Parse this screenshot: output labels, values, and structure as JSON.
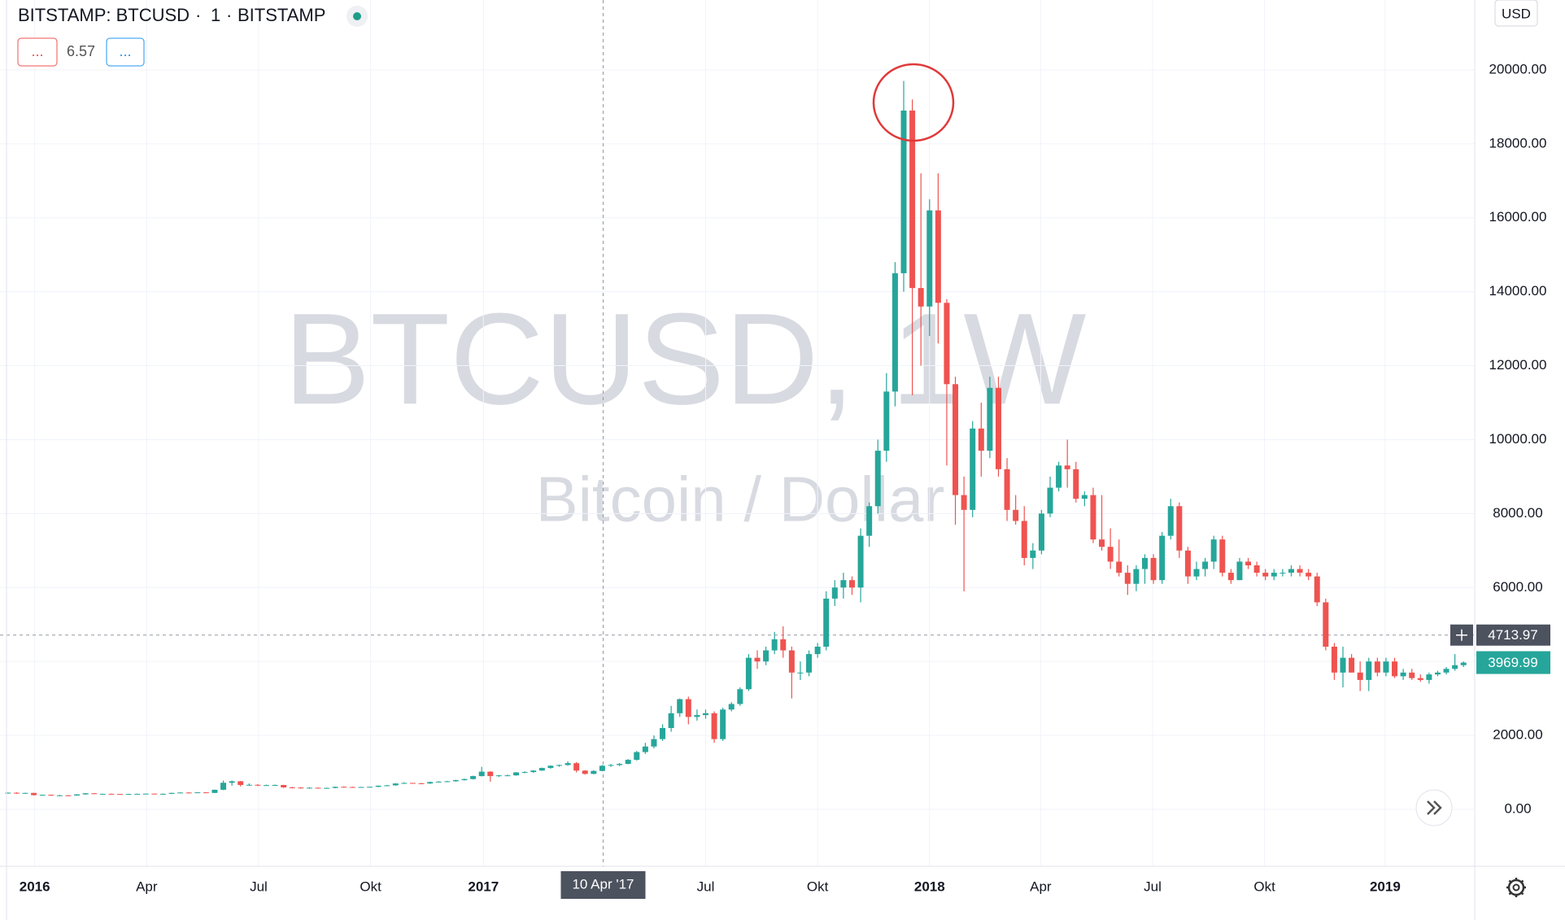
{
  "chart_data": {
    "type": "candlestick",
    "title": "BITSTAMP: BTCUSD",
    "interval": "1",
    "exchange": "BITSTAMP",
    "indicator_buttons": [
      "...",
      "..."
    ],
    "indicator_value": 6.57,
    "watermark": "BTCUSD, 1W",
    "watermark_subtitle": "Bitcoin / Dollar",
    "currency": "USD",
    "up_color": "#26a69a",
    "down_color": "#ef5350",
    "grid": true,
    "xlim": [
      -0.93,
      170.3
    ],
    "ylim": [
      -1540,
      21890
    ],
    "xticks": [
      {
        "value": 3.1,
        "label": "2016"
      },
      {
        "value": 16.1,
        "label": "Apr"
      },
      {
        "value": 29.1,
        "label": "Jul"
      },
      {
        "value": 42.1,
        "label": "Okt"
      },
      {
        "value": 55.2,
        "label": "2017"
      },
      {
        "value": 81.0,
        "label": "Jul"
      },
      {
        "value": 94.0,
        "label": "Okt"
      },
      {
        "value": 107.0,
        "label": "2018"
      },
      {
        "value": 119.9,
        "label": "Apr"
      },
      {
        "value": 132.9,
        "label": "Jul"
      },
      {
        "value": 145.9,
        "label": "Okt"
      },
      {
        "value": 159.9,
        "label": "2019"
      }
    ],
    "yticks": [
      {
        "value": 0,
        "label": "0.00"
      },
      {
        "value": 2000,
        "label": "2000.00"
      },
      {
        "value": 4000,
        "label": "4000.00"
      },
      {
        "value": 6000,
        "label": "6000.00"
      },
      {
        "value": 8000,
        "label": "8000.00"
      },
      {
        "value": 10000,
        "label": "10000.00"
      },
      {
        "value": 12000,
        "label": "12000.00"
      },
      {
        "value": 14000,
        "label": "14000.00"
      },
      {
        "value": 16000,
        "label": "16000.00"
      },
      {
        "value": 18000,
        "label": "18000.00"
      },
      {
        "value": 20000,
        "label": "20000.00"
      }
    ],
    "crosshair": {
      "x": 69.1,
      "x_label": "10 Apr '17",
      "y": 4713.97
    },
    "open": [
      440,
      450,
      430,
      445,
      385,
      395,
      380,
      380,
      375,
      405,
      435,
      415,
      420,
      415,
      410,
      415,
      420,
      425,
      420,
      420,
      445,
      455,
      445,
      460,
      445,
      530,
      720,
      760,
      660,
      665,
      650,
      655,
      660,
      595,
      590,
      575,
      585,
      575,
      580,
      610,
      605,
      600,
      605,
      610,
      640,
      650,
      700,
      715,
      705,
      700,
      740,
      750,
      760,
      790,
      820,
      900,
      1020,
      900,
      920,
      920,
      1000,
      1010,
      1050,
      1120,
      1180,
      1200,
      1250,
      1050,
      960,
      1040,
      1180,
      1200,
      1230,
      1340,
      1550,
      1700,
      1900,
      2200,
      2600,
      2980,
      2500,
      2550,
      2600,
      1900,
      2700,
      2850,
      3250,
      4100,
      4000,
      4300,
      4600,
      4300,
      3700,
      3700,
      4200,
      4400,
      5700,
      6000,
      6200,
      6000,
      7400,
      8200,
      9700,
      11300,
      14500,
      18900,
      14100,
      13600,
      16200,
      13700,
      11500,
      8500,
      8100,
      10300,
      9700,
      11400,
      9200,
      8100,
      7800,
      6800,
      7000,
      8000,
      8700,
      9300,
      9200,
      8400,
      8500,
      7300,
      7100,
      6700,
      6400,
      6100,
      6500,
      6800,
      6200,
      7400,
      8200,
      7000,
      6300,
      6500,
      6700,
      7300,
      6400,
      6200,
      6700,
      6600,
      6400,
      6300,
      6400,
      6400,
      6500,
      6400,
      6300,
      5600,
      4400,
      3700,
      4100,
      3700,
      3500,
      4000,
      3700,
      4000,
      3600,
      3700,
      3550,
      3500,
      3650,
      3700,
      3800,
      3900
    ],
    "high": [
      460,
      460,
      450,
      450,
      400,
      400,
      395,
      390,
      410,
      440,
      440,
      425,
      425,
      420,
      420,
      425,
      430,
      430,
      430,
      450,
      460,
      465,
      465,
      465,
      535,
      780,
      780,
      770,
      700,
      680,
      670,
      670,
      665,
      610,
      600,
      600,
      590,
      590,
      615,
      625,
      615,
      610,
      615,
      645,
      660,
      710,
      730,
      720,
      715,
      750,
      760,
      770,
      800,
      830,
      910,
      1150,
      1030,
      930,
      940,
      1010,
      1030,
      1060,
      1130,
      1190,
      1210,
      1300,
      1280,
      1060,
      1060,
      1200,
      1230,
      1250,
      1360,
      1580,
      1800,
      2000,
      2300,
      2800,
      3000,
      3050,
      2700,
      2700,
      2650,
      2750,
      2900,
      3300,
      4200,
      4300,
      4400,
      4800,
      4950,
      4400,
      4000,
      4300,
      4500,
      5900,
      6200,
      6400,
      6300,
      7600,
      8300,
      10000,
      11800,
      14800,
      19700,
      19200,
      17200,
      16500,
      17200,
      13800,
      11700,
      9000,
      10500,
      11000,
      11700,
      11700,
      9500,
      8500,
      8200,
      7200,
      8100,
      9000,
      9400,
      10000,
      9400,
      8600,
      8700,
      8500,
      7600,
      7300,
      6600,
      6600,
      6900,
      6900,
      7500,
      8400,
      8300,
      7100,
      6700,
      6800,
      7400,
      7400,
      6500,
      6800,
      6800,
      6700,
      6500,
      6500,
      6500,
      6600,
      6600,
      6500,
      6400,
      5700,
      4500,
      4400,
      4200,
      4000,
      4100,
      4100,
      4100,
      4100,
      3800,
      3800,
      3650,
      3700,
      3750,
      3850,
      4200,
      4000
    ],
    "low": [
      430,
      420,
      420,
      375,
      375,
      370,
      370,
      365,
      370,
      400,
      410,
      405,
      410,
      405,
      405,
      410,
      415,
      415,
      410,
      415,
      440,
      440,
      440,
      440,
      440,
      520,
      640,
      620,
      640,
      630,
      640,
      640,
      580,
      570,
      560,
      560,
      560,
      565,
      570,
      595,
      590,
      590,
      595,
      600,
      630,
      640,
      690,
      695,
      680,
      690,
      730,
      740,
      750,
      780,
      810,
      890,
      750,
      880,
      900,
      910,
      980,
      990,
      1040,
      1100,
      1150,
      1180,
      1000,
      940,
      950,
      1030,
      1150,
      1170,
      1220,
      1320,
      1500,
      1650,
      1850,
      2100,
      2500,
      2300,
      2400,
      2450,
      1800,
      1850,
      2650,
      2800,
      3200,
      3800,
      3900,
      4200,
      4100,
      3000,
      3500,
      3600,
      4100,
      4300,
      5500,
      5700,
      5800,
      5600,
      7100,
      8000,
      9400,
      10900,
      14000,
      11200,
      12000,
      12800,
      12600,
      9300,
      7700,
      5900,
      7900,
      9000,
      9500,
      9000,
      7800,
      7700,
      6600,
      6500,
      6900,
      7900,
      8600,
      8700,
      8300,
      8200,
      7200,
      7000,
      6500,
      6300,
      5800,
      5900,
      6100,
      6100,
      6100,
      7300,
      6800,
      6100,
      6200,
      6300,
      6500,
      6300,
      6100,
      6200,
      6500,
      6300,
      6200,
      6200,
      6300,
      6300,
      6300,
      6200,
      5500,
      4300,
      3500,
      3300,
      3700,
      3200,
      3200,
      3600,
      3600,
      3550,
      3500,
      3500,
      3450,
      3400,
      3600,
      3650,
      3750,
      3850
    ],
    "close": [
      450,
      430,
      445,
      385,
      395,
      380,
      380,
      375,
      405,
      435,
      415,
      420,
      415,
      410,
      415,
      420,
      425,
      420,
      420,
      445,
      455,
      445,
      460,
      445,
      530,
      720,
      760,
      660,
      665,
      650,
      655,
      660,
      595,
      590,
      575,
      585,
      575,
      580,
      610,
      605,
      600,
      605,
      610,
      640,
      650,
      700,
      715,
      705,
      700,
      740,
      750,
      760,
      790,
      820,
      900,
      1020,
      900,
      920,
      920,
      1000,
      1010,
      1050,
      1120,
      1180,
      1200,
      1250,
      1050,
      960,
      1040,
      1180,
      1200,
      1230,
      1340,
      1550,
      1700,
      1900,
      2200,
      2600,
      2980,
      2500,
      2550,
      2600,
      1900,
      2700,
      2850,
      3250,
      4100,
      4000,
      4300,
      4600,
      4300,
      3700,
      3700,
      4200,
      4400,
      5700,
      6000,
      6200,
      6000,
      7400,
      8200,
      9700,
      11300,
      14500,
      18900,
      14100,
      13600,
      16200,
      13700,
      11500,
      8500,
      8100,
      10300,
      9700,
      11400,
      9200,
      8100,
      7800,
      6800,
      7000,
      8000,
      8700,
      9300,
      9200,
      8400,
      8500,
      7300,
      7100,
      6700,
      6400,
      6100,
      6500,
      6800,
      6200,
      7400,
      8200,
      7000,
      6300,
      6500,
      6700,
      7300,
      6400,
      6200,
      6700,
      6600,
      6400,
      6300,
      6400,
      6400,
      6500,
      6400,
      6300,
      5600,
      4400,
      3700,
      4100,
      3700,
      3500,
      4000,
      3700,
      4000,
      3600,
      3700,
      3550,
      3500,
      3650,
      3700,
      3800,
      3900,
      3969.99
    ]
  }
}
